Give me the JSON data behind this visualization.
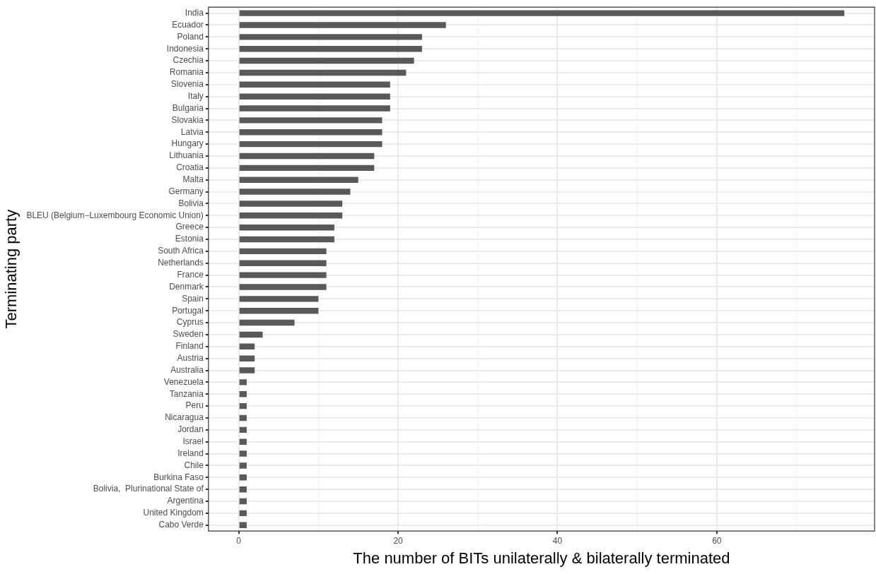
{
  "chart_data": {
    "type": "bar",
    "orientation": "horizontal",
    "xlabel": "The number of BITs unilaterally & bilaterally terminated",
    "ylabel": "Terminating party",
    "categories": [
      "India",
      "Ecuador",
      "Poland",
      "Indonesia",
      "Czechia",
      "Romania",
      "Slovenia",
      "Italy",
      "Bulgaria",
      "Slovakia",
      "Latvia",
      "Hungary",
      "Lithuania",
      "Croatia",
      "Malta",
      "Germany",
      "Bolivia",
      "BLEU (Belgium−Luxembourg Economic Union)",
      "Greece",
      "Estonia",
      "South Africa",
      "Netherlands",
      "France",
      "Denmark",
      "Spain",
      "Portugal",
      "Cyprus",
      "Sweden",
      "Finland",
      "Austria",
      "Australia",
      "Venezuela",
      "Tanzania",
      "Peru",
      "Nicaragua",
      "Jordan",
      "Israel",
      "Ireland",
      "Chile",
      "Burkina Faso",
      "Bolivia,  Plurinational State of",
      "Argentina",
      "United Kingdom",
      "Cabo Verde"
    ],
    "values": [
      76,
      26,
      23,
      23,
      22,
      21,
      19,
      19,
      19,
      18,
      18,
      18,
      17,
      17,
      15,
      14,
      13,
      13,
      12,
      12,
      11,
      11,
      11,
      11,
      10,
      10,
      7,
      3,
      2,
      2,
      2,
      1,
      1,
      1,
      1,
      1,
      1,
      1,
      1,
      1,
      1,
      1,
      1,
      1
    ],
    "color": "#595959",
    "xlim": [
      -3.8,
      79.8
    ],
    "xticks": [
      0,
      {
        "value": 10,
        "label": null
      },
      20,
      {
        "value": 30,
        "label": null
      },
      40,
      {
        "value": 50,
        "label": null
      },
      60,
      {
        "value": 70,
        "label": null
      }
    ],
    "grid": true
  }
}
